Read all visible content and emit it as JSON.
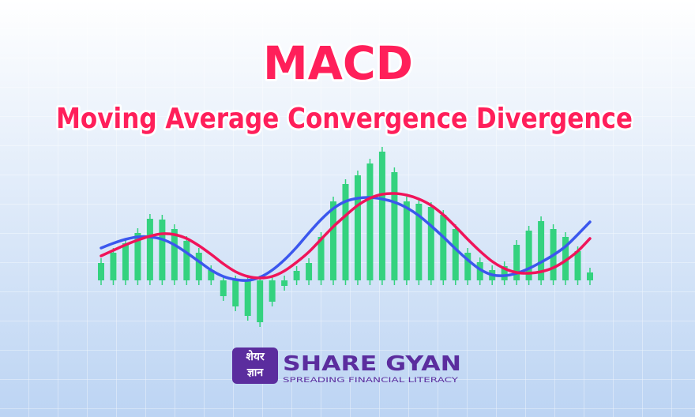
{
  "chart_data": {
    "type": "bar",
    "title": "MACD",
    "subtitle": "Moving Average Convergence Divergence",
    "categories": [
      null,
      null,
      null,
      null,
      null,
      null,
      null,
      null,
      null,
      null,
      null,
      null,
      null,
      null,
      null,
      null,
      null,
      null,
      null,
      null,
      null,
      null,
      null,
      null,
      null,
      null,
      null,
      null,
      null,
      null,
      null,
      null,
      null,
      null,
      null,
      null,
      null,
      null,
      null,
      null,
      null
    ],
    "values": [
      2.2,
      3.5,
      4.7,
      6,
      7.8,
      7.7,
      6.5,
      5,
      3.5,
      1.3,
      -2,
      -3.3,
      -4.5,
      -5.3,
      -2.7,
      -0.7,
      1.2,
      2.2,
      5.5,
      10,
      12.2,
      13.3,
      14.8,
      16.3,
      13.7,
      10,
      9.7,
      9.3,
      8.3,
      6.5,
      3.5,
      2.3,
      1.3,
      1.8,
      4.5,
      6.3,
      7.5,
      6.5,
      5.5,
      3.7,
      1
    ],
    "color": "#34d27f",
    "lines": [
      {
        "color": "#3b57ee",
        "values": [
          4.1,
          4.7,
          5.2,
          5.5,
          5.5,
          5.2,
          4.5,
          3.5,
          2.4,
          1.3,
          0.5,
          0.1,
          0,
          0.4,
          1.3,
          2.6,
          4.2,
          6,
          7.7,
          9.1,
          10,
          10.4,
          10.5,
          10.3,
          9.9,
          9.2,
          8.2,
          6.9,
          5.5,
          4,
          2.6,
          1.4,
          0.7,
          0.6,
          0.9,
          1.5,
          2.3,
          3.2,
          4.3,
          5.8,
          7.4
        ]
      },
      {
        "color": "#f0145a",
        "values": [
          3.1,
          3.8,
          4.5,
          5.1,
          5.6,
          5.9,
          5.8,
          5.3,
          4.4,
          3.3,
          2.1,
          1.1,
          0.5,
          0.3,
          0.5,
          1.2,
          2.3,
          3.6,
          5.2,
          6.8,
          8.2,
          9.5,
          10.4,
          10.9,
          11,
          10.8,
          10.3,
          9.5,
          8.3,
          6.8,
          5.2,
          3.7,
          2.4,
          1.5,
          1,
          0.9,
          1.1,
          1.6,
          2.5,
          3.7,
          5.3
        ]
      }
    ],
    "ylim": [
      -6,
      17
    ]
  },
  "logo": {
    "badge_line1": "शेयर",
    "badge_line2": "ज्ञान",
    "name": "SHARE GYAN",
    "tagline": "SPREADING FINANCIAL LITERACY"
  }
}
